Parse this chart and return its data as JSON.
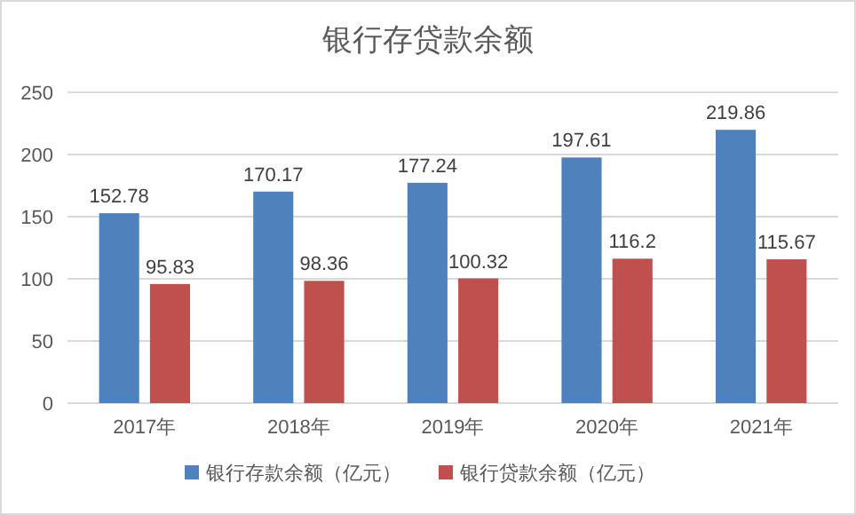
{
  "chart_data": {
    "type": "bar",
    "title": "银行存贷款余额",
    "categories": [
      "2017年",
      "2018年",
      "2019年",
      "2020年",
      "2021年"
    ],
    "series": [
      {
        "name": "银行存款余额（亿元）",
        "color": "#4f81bd",
        "values": [
          152.78,
          170.17,
          177.24,
          197.61,
          219.86
        ]
      },
      {
        "name": "银行贷款余额（亿元）",
        "color": "#c0504d",
        "values": [
          95.83,
          98.36,
          100.32,
          116.2,
          115.67
        ]
      }
    ],
    "ylim": [
      0,
      250
    ],
    "yticks": [
      0,
      50,
      100,
      150,
      200,
      250
    ],
    "grid": "y",
    "legend": "bottom",
    "data_labels": true
  }
}
